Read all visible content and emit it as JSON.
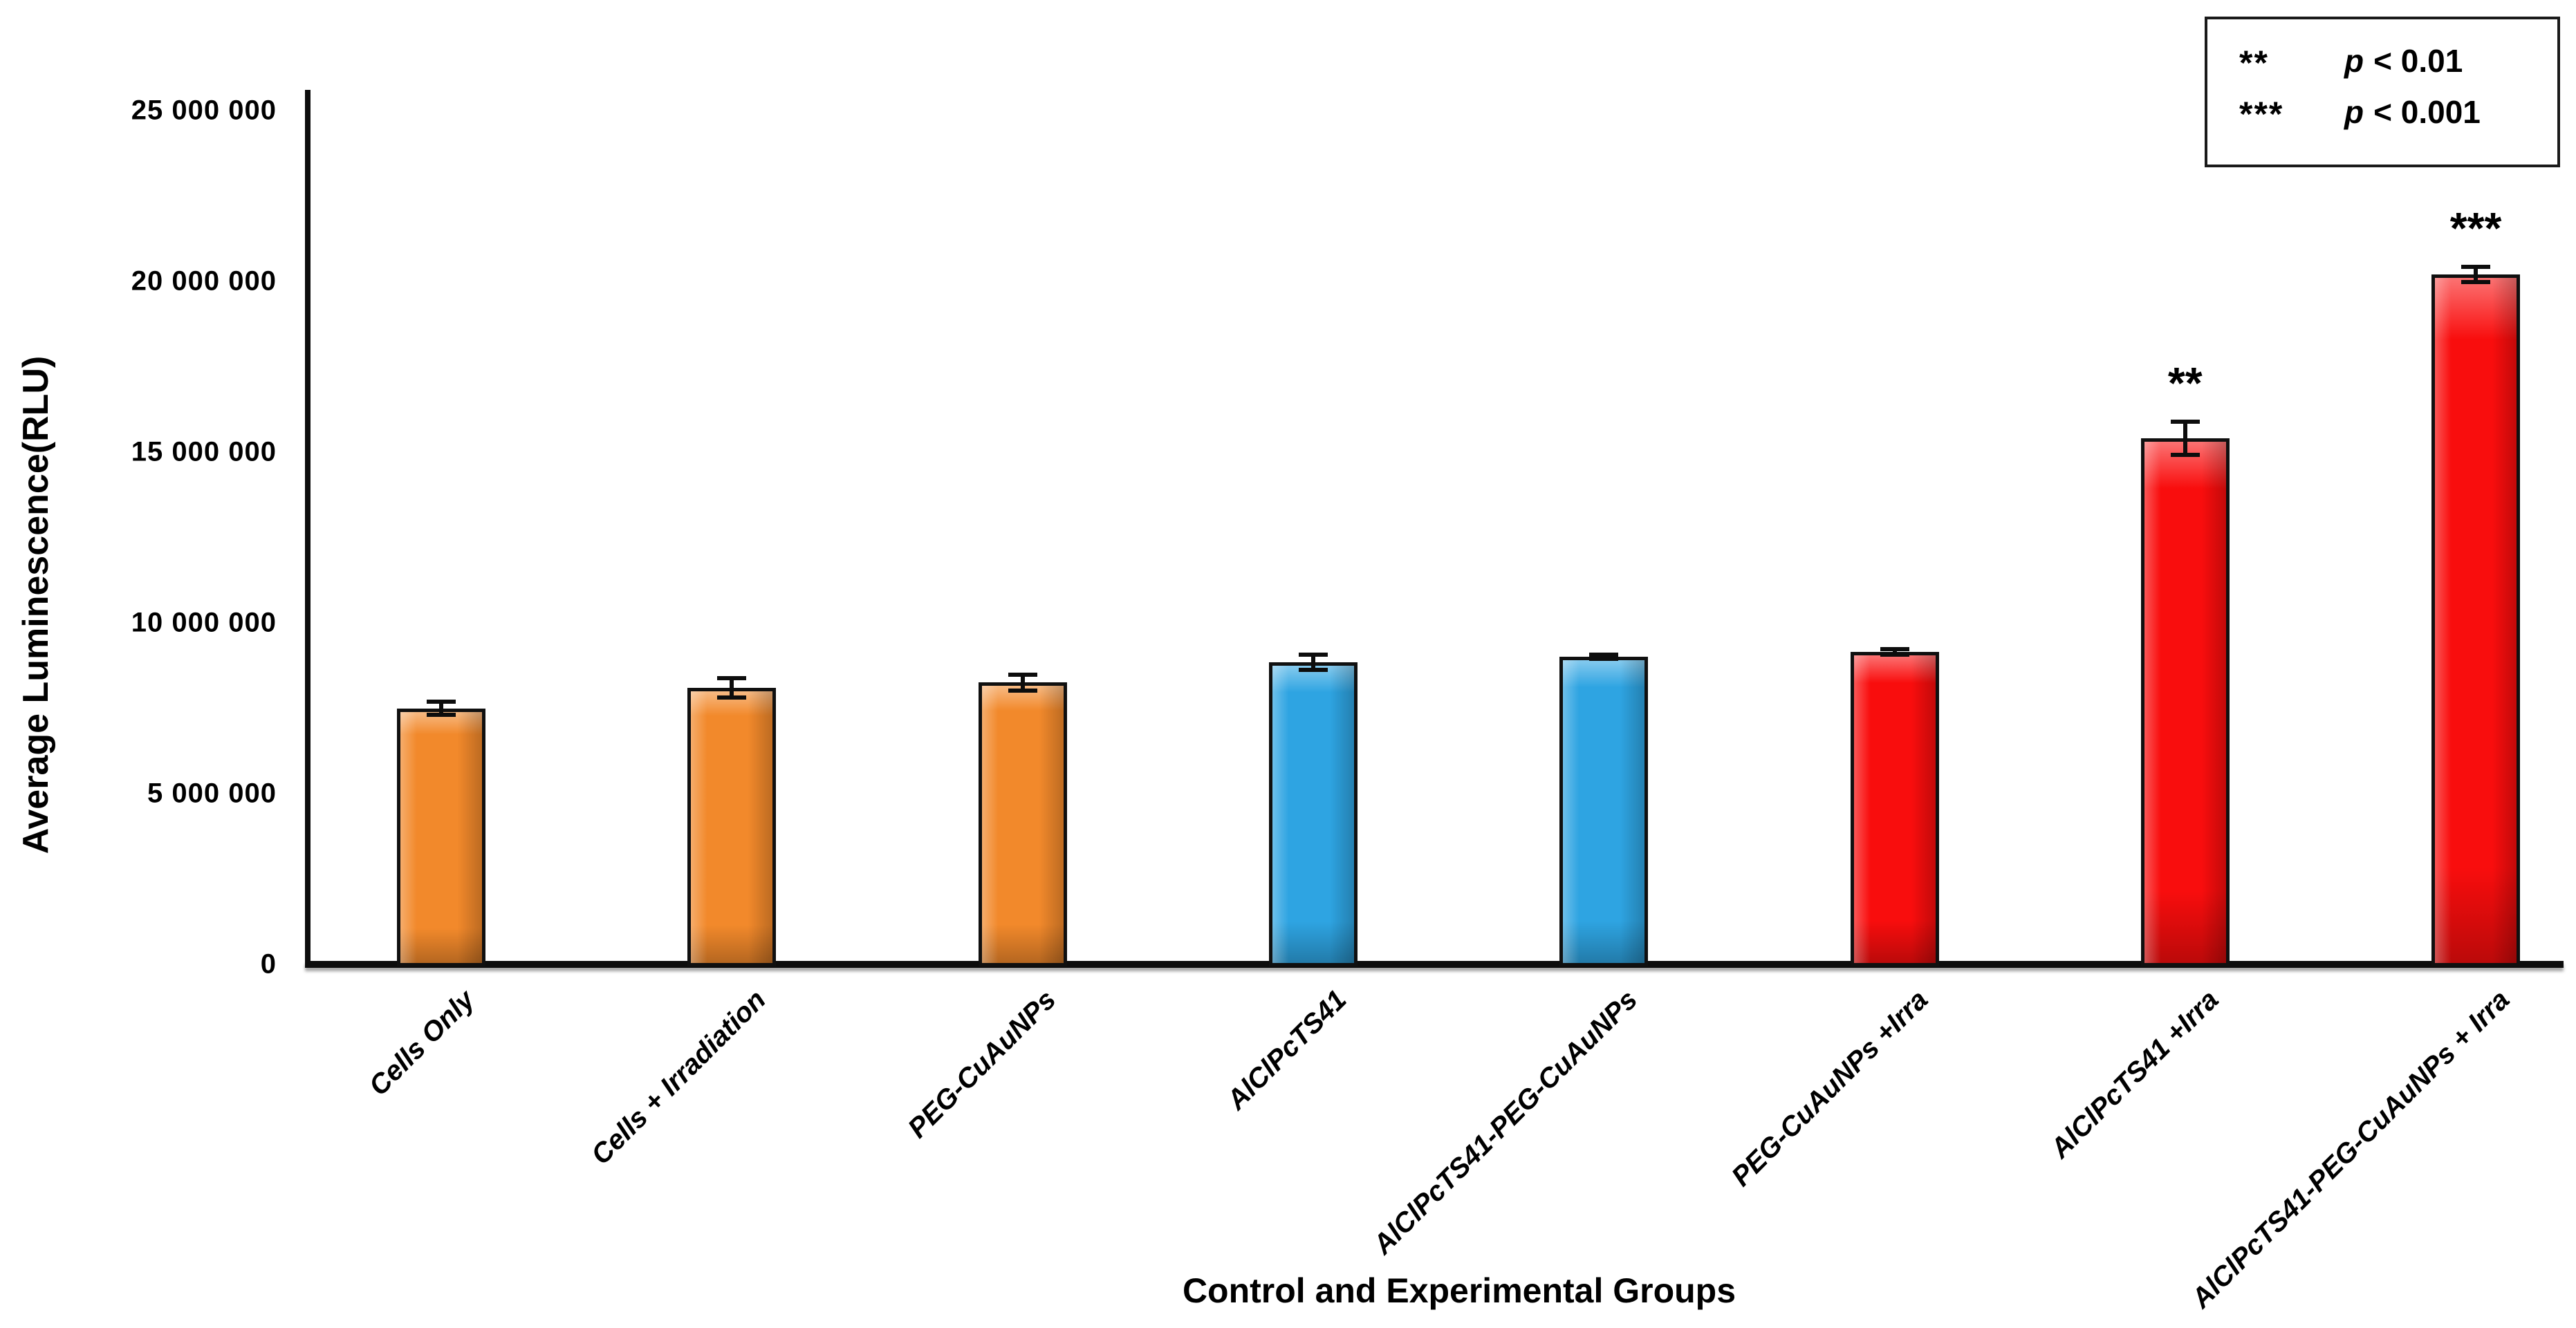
{
  "chart_data": {
    "type": "bar",
    "title": "",
    "xlabel": "Control and Experimental Groups",
    "ylabel": "Average Luminescence(RLU)",
    "ylim": [
      0,
      25000000
    ],
    "ytick_step": 5000000,
    "ytick_labels": [
      "0",
      "5 000 000",
      "10 000 000",
      "15 000 000",
      "20 000 000",
      "25 000 000"
    ],
    "grid": false,
    "legend_position": "top-right",
    "categories": [
      "Cells Only",
      "Cells + Irradiation",
      "PEG-CuAuNPs",
      "AlClPcTS41",
      "AlClPcTS41-PEG-CuAuNPs",
      "PEG-CuAuNPs +Irra",
      "AlClPcTS41 +Irra",
      "AlClPcTS41-PEG-CuAuNPs + Irra"
    ],
    "values": [
      7500000,
      8100000,
      8250000,
      8850000,
      9000000,
      9150000,
      15400000,
      20200000
    ],
    "errors": [
      260000,
      350000,
      300000,
      280000,
      120000,
      140000,
      550000,
      280000
    ],
    "colors": [
      "orange",
      "orange",
      "orange",
      "blue",
      "blue",
      "red",
      "red",
      "red"
    ],
    "significance": [
      "",
      "",
      "",
      "",
      "",
      "",
      "**",
      "***"
    ],
    "palette": {
      "orange": "#F2892B",
      "blue": "#2EA4E2",
      "red": "#F90D0D"
    },
    "axis_color": "#0d0d0d"
  },
  "legend": {
    "rows": [
      {
        "symbol": "**",
        "variable": "p",
        "comparison": "< 0.01"
      },
      {
        "symbol": "***",
        "variable": "p",
        "comparison": "< 0.001"
      }
    ]
  }
}
